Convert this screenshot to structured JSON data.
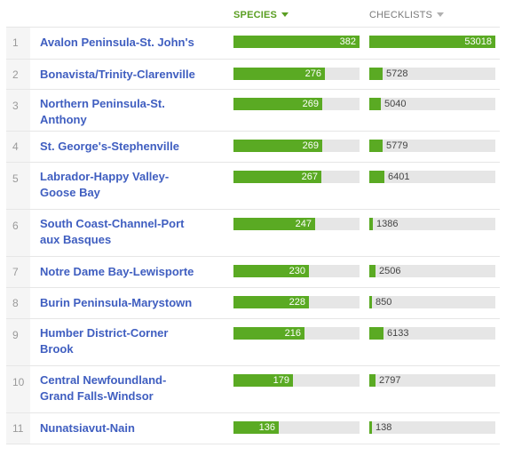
{
  "columns": {
    "species_label": "SPECIES",
    "checklists_label": "CHECKLISTS",
    "sort_icon": "caret-down-icon"
  },
  "colors": {
    "bar_fill": "#5aaa23",
    "bar_track": "#e6e6e6",
    "link": "#3f5ec0",
    "active_header": "#5a9e22"
  },
  "scale": {
    "species_max": 382,
    "checklists_max": 53018
  },
  "regions": [
    {
      "rank": "1",
      "name_lines": [
        "Avalon Peninsula-St. John's"
      ],
      "species": 382,
      "checklists": 53018
    },
    {
      "rank": "2",
      "name_lines": [
        "Bonavista/Trinity-Clarenville"
      ],
      "species": 276,
      "checklists": 5728
    },
    {
      "rank": "3",
      "name_lines": [
        "Northern Peninsula-St.",
        "Anthony"
      ],
      "species": 269,
      "checklists": 5040
    },
    {
      "rank": "4",
      "name_lines": [
        "St. George's-Stephenville"
      ],
      "species": 269,
      "checklists": 5779
    },
    {
      "rank": "5",
      "name_lines": [
        "Labrador-Happy Valley-",
        "Goose Bay"
      ],
      "species": 267,
      "checklists": 6401
    },
    {
      "rank": "6",
      "name_lines": [
        "South Coast-Channel-Port",
        "aux Basques"
      ],
      "species": 247,
      "checklists": 1386
    },
    {
      "rank": "7",
      "name_lines": [
        "Notre Dame Bay-Lewisporte"
      ],
      "species": 230,
      "checklists": 2506
    },
    {
      "rank": "8",
      "name_lines": [
        "Burin Peninsula-Marystown"
      ],
      "species": 228,
      "checklists": 850
    },
    {
      "rank": "9",
      "name_lines": [
        "Humber District-Corner",
        "Brook"
      ],
      "species": 216,
      "checklists": 6133
    },
    {
      "rank": "10",
      "name_lines": [
        "Central Newfoundland-",
        "Grand Falls-Windsor"
      ],
      "species": 179,
      "checklists": 2797
    },
    {
      "rank": "11",
      "name_lines": [
        "Nunatsiavut-Nain"
      ],
      "species": 136,
      "checklists": 138
    }
  ]
}
